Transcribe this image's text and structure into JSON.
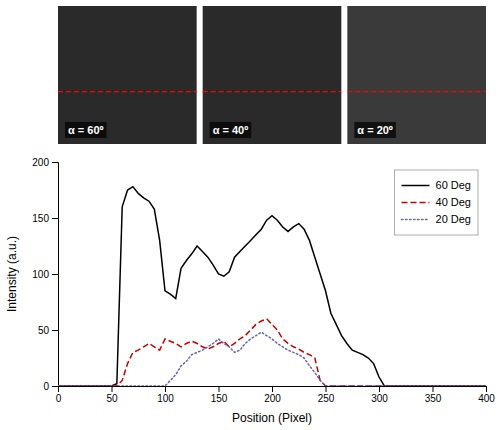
{
  "chart_data": {
    "type": "line",
    "xlabel": "Position (Pixel)",
    "ylabel": "Intensity (a.u.)",
    "xlim": [
      0,
      400
    ],
    "ylim": [
      0,
      200
    ],
    "xticks": [
      0,
      50,
      100,
      150,
      200,
      250,
      300,
      350,
      400
    ],
    "yticks": [
      0,
      50,
      100,
      150,
      200
    ],
    "grid": false,
    "legend": "upper right",
    "annotations": [
      "α = 60º",
      "α = 40º",
      "α = 20º"
    ],
    "series": [
      {
        "name": "60 Deg",
        "color": "#000000",
        "line_style": "solid",
        "x": [
          0,
          50,
          55,
          60,
          65,
          70,
          75,
          80,
          85,
          90,
          95,
          100,
          105,
          110,
          115,
          120,
          125,
          130,
          135,
          140,
          145,
          150,
          155,
          160,
          165,
          170,
          175,
          180,
          185,
          190,
          195,
          200,
          205,
          210,
          215,
          220,
          225,
          230,
          235,
          240,
          245,
          250,
          255,
          260,
          265,
          270,
          275,
          280,
          285,
          290,
          295,
          300,
          305,
          400
        ],
        "values": [
          0,
          0,
          2,
          160,
          175,
          178,
          172,
          168,
          165,
          158,
          130,
          85,
          82,
          78,
          105,
          112,
          118,
          125,
          120,
          115,
          108,
          100,
          98,
          102,
          115,
          120,
          125,
          130,
          135,
          140,
          148,
          152,
          148,
          142,
          138,
          142,
          145,
          140,
          130,
          115,
          100,
          85,
          65,
          55,
          45,
          38,
          32,
          30,
          28,
          25,
          20,
          8,
          0,
          0
        ]
      },
      {
        "name": "40 Deg",
        "color": "#cc0000",
        "line_style": "dashed",
        "x": [
          0,
          55,
          60,
          65,
          70,
          75,
          80,
          85,
          90,
          95,
          100,
          105,
          110,
          115,
          120,
          125,
          130,
          135,
          140,
          145,
          150,
          155,
          160,
          165,
          170,
          175,
          180,
          185,
          190,
          195,
          200,
          205,
          210,
          215,
          220,
          225,
          230,
          235,
          240,
          245,
          250,
          255,
          260,
          400
        ],
        "values": [
          0,
          0,
          5,
          20,
          30,
          32,
          35,
          38,
          35,
          32,
          42,
          40,
          38,
          35,
          38,
          40,
          38,
          35,
          33,
          35,
          38,
          40,
          35,
          38,
          42,
          45,
          50,
          55,
          58,
          60,
          55,
          50,
          42,
          38,
          35,
          33,
          30,
          28,
          25,
          5,
          0,
          0,
          0,
          0
        ]
      },
      {
        "name": "20 Deg",
        "color": "#6666aa",
        "line_style": "dotted",
        "x": [
          0,
          100,
          105,
          110,
          115,
          120,
          125,
          130,
          135,
          140,
          145,
          150,
          155,
          160,
          165,
          170,
          175,
          180,
          185,
          190,
          195,
          200,
          205,
          210,
          215,
          220,
          225,
          230,
          235,
          240,
          245,
          250,
          255,
          400
        ],
        "values": [
          0,
          0,
          5,
          10,
          18,
          22,
          28,
          30,
          32,
          35,
          38,
          42,
          38,
          35,
          30,
          32,
          38,
          42,
          45,
          48,
          45,
          42,
          38,
          35,
          32,
          30,
          28,
          25,
          18,
          12,
          5,
          0,
          0,
          0
        ]
      }
    ]
  }
}
